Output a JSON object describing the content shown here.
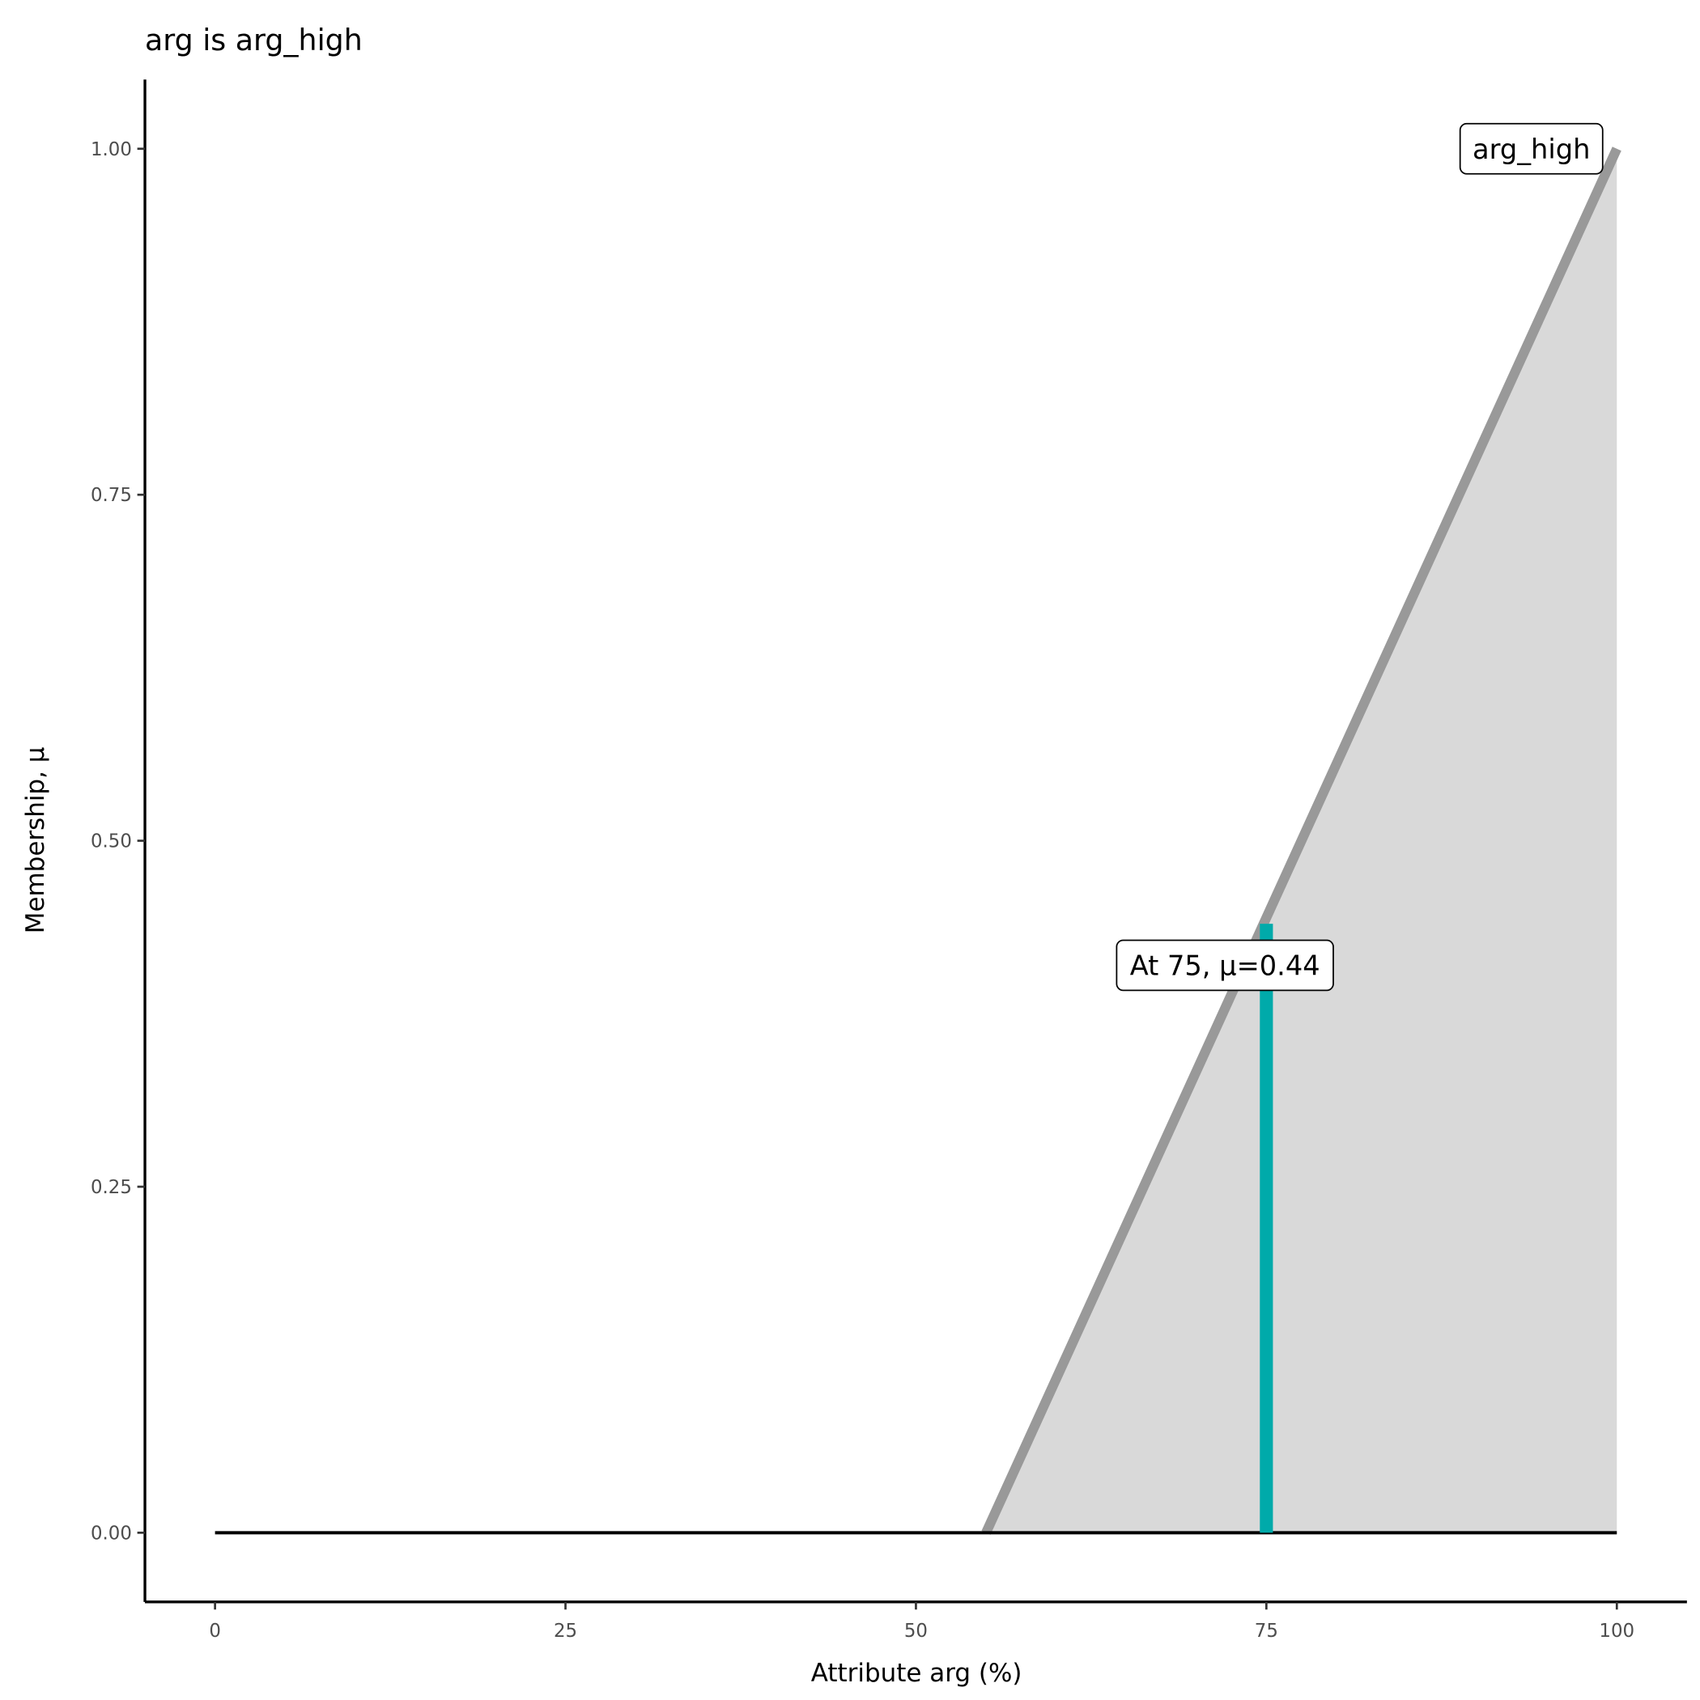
{
  "chart_data": {
    "type": "area",
    "title": "arg is arg_high",
    "xlabel": "Attribute arg (%)",
    "ylabel": "Membership, μ",
    "xlim": [
      -5,
      105
    ],
    "ylim": [
      -0.05,
      1.05
    ],
    "x_ticks": [
      "0",
      "25",
      "50",
      "75",
      "100"
    ],
    "y_ticks": [
      "0.00",
      "0.25",
      "0.50",
      "0.75",
      "1.00"
    ],
    "grid": false,
    "series": [
      {
        "name": "arg_high",
        "x": [
          0,
          55,
          100
        ],
        "y": [
          0,
          0,
          1
        ],
        "color": "#999999",
        "fill": "#d9d9d9"
      }
    ],
    "marker": {
      "x": 75,
      "mu": 0.44,
      "color": "#00aaaa",
      "label": "At 75, μ=0.44"
    },
    "labels": {
      "set_label": "arg_high"
    }
  }
}
